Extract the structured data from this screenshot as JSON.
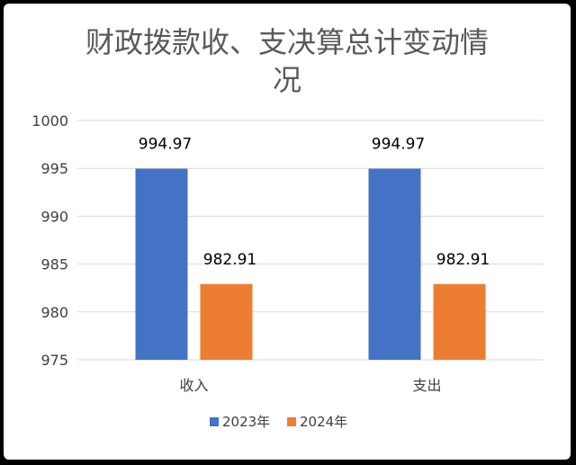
{
  "chart_data": {
    "type": "bar",
    "title": "财政拨款收、支决算总计变动情况",
    "categories": [
      "收入",
      "支出"
    ],
    "series": [
      {
        "name": "2023年",
        "color": "#4472C4",
        "values": [
          994.97,
          994.97
        ]
      },
      {
        "name": "2024年",
        "color": "#ED7D31",
        "values": [
          982.91,
          982.91
        ]
      }
    ],
    "data_labels": [
      [
        "994.97",
        "994.97"
      ],
      [
        "982.91",
        "982.91"
      ]
    ],
    "ylim": [
      975,
      1000
    ],
    "yticks": [
      975,
      980,
      985,
      990,
      995,
      1000
    ],
    "ytick_labels": [
      "975",
      "980",
      "985",
      "990",
      "995",
      "1000"
    ],
    "xlabel": "",
    "ylabel": "",
    "grid": true,
    "legend_position": "bottom"
  }
}
